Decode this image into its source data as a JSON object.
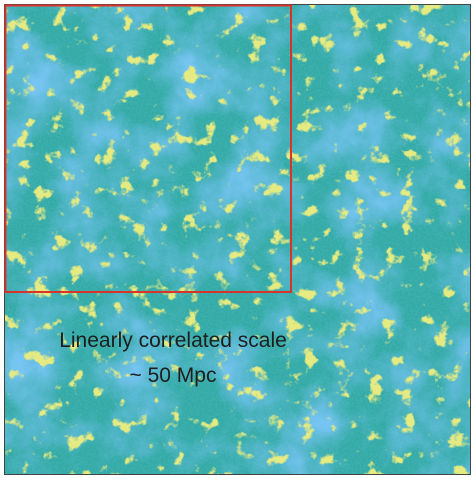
{
  "annotation": {
    "lines": [
      "Linearly correlated scale",
      "~ 50 Mpc"
    ]
  }
}
